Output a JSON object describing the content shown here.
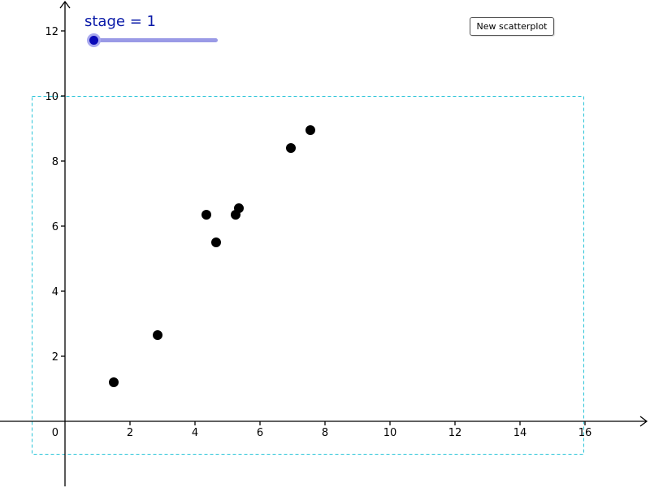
{
  "slider": {
    "label": "stage = 1",
    "value": 1,
    "color": "#0a1aa8"
  },
  "button": {
    "label": "New scatterplot"
  },
  "chart_data": {
    "type": "scatter",
    "title": "",
    "xlabel": "",
    "ylabel": "",
    "xlim": [
      -2,
      18
    ],
    "ylim": [
      -2,
      13
    ],
    "x_ticks": [
      "2",
      "4",
      "6",
      "8",
      "10",
      "12",
      "14",
      "16"
    ],
    "y_ticks": [
      "2",
      "4",
      "6",
      "8",
      "10",
      "12"
    ],
    "origin_label": "0",
    "grid": false,
    "frame": {
      "x": [
        -1,
        16
      ],
      "y": [
        -1,
        10
      ],
      "color": "#2bc4d8"
    },
    "point_color": "#000000",
    "points": [
      {
        "x": 1.5,
        "y": 1.2
      },
      {
        "x": 2.85,
        "y": 2.65
      },
      {
        "x": 4.35,
        "y": 6.35
      },
      {
        "x": 4.65,
        "y": 5.5
      },
      {
        "x": 5.25,
        "y": 6.35
      },
      {
        "x": 5.35,
        "y": 6.55
      },
      {
        "x": 6.95,
        "y": 8.4
      },
      {
        "x": 7.55,
        "y": 8.95
      }
    ]
  }
}
